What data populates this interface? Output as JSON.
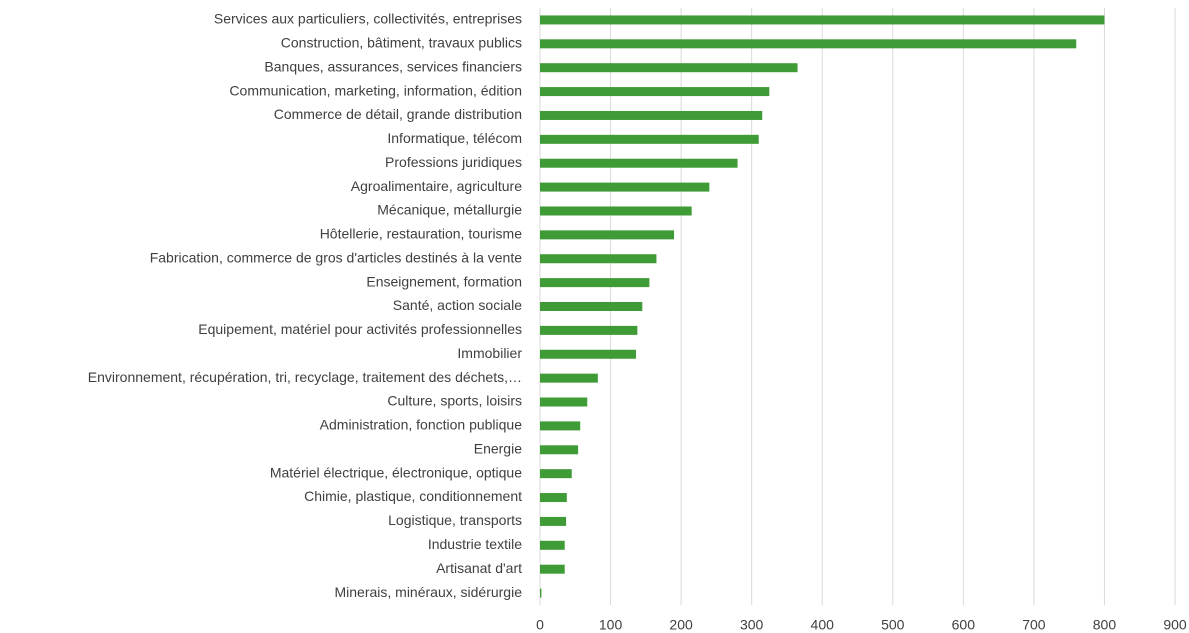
{
  "chart_data": {
    "type": "barh",
    "categories": [
      "Services aux particuliers, collectivités, entreprises",
      "Construction, bâtiment, travaux publics",
      "Banques, assurances, services financiers",
      "Communication, marketing, information, édition",
      "Commerce de détail, grande distribution",
      "Informatique, télécom",
      "Professions juridiques",
      "Agroalimentaire, agriculture",
      "Mécanique, métallurgie",
      "Hôtellerie, restauration, tourisme",
      "Fabrication, commerce de gros d'articles destinés à la vente",
      "Enseignement, formation",
      "Santé, action sociale",
      "Equipement, matériel pour activités professionnelles",
      "Immobilier",
      "Environnement, récupération, tri, recyclage, traitement des déchets,…",
      "Culture, sports, loisirs",
      "Administration, fonction publique",
      "Energie",
      "Matériel électrique, électronique, optique",
      "Chimie, plastique, conditionnement",
      "Logistique, transports",
      "Industrie textile",
      "Artisanat d'art",
      "Minerais, minéraux, sidérurgie"
    ],
    "values": [
      800,
      760,
      365,
      325,
      315,
      310,
      280,
      240,
      215,
      190,
      165,
      155,
      145,
      138,
      136,
      82,
      67,
      57,
      54,
      45,
      38,
      37,
      35,
      35,
      2
    ],
    "color": "#3f9b35",
    "xlim": [
      0,
      900
    ],
    "xticks": [
      0,
      100,
      200,
      300,
      400,
      500,
      600,
      700,
      800,
      900
    ],
    "grid": true
  }
}
